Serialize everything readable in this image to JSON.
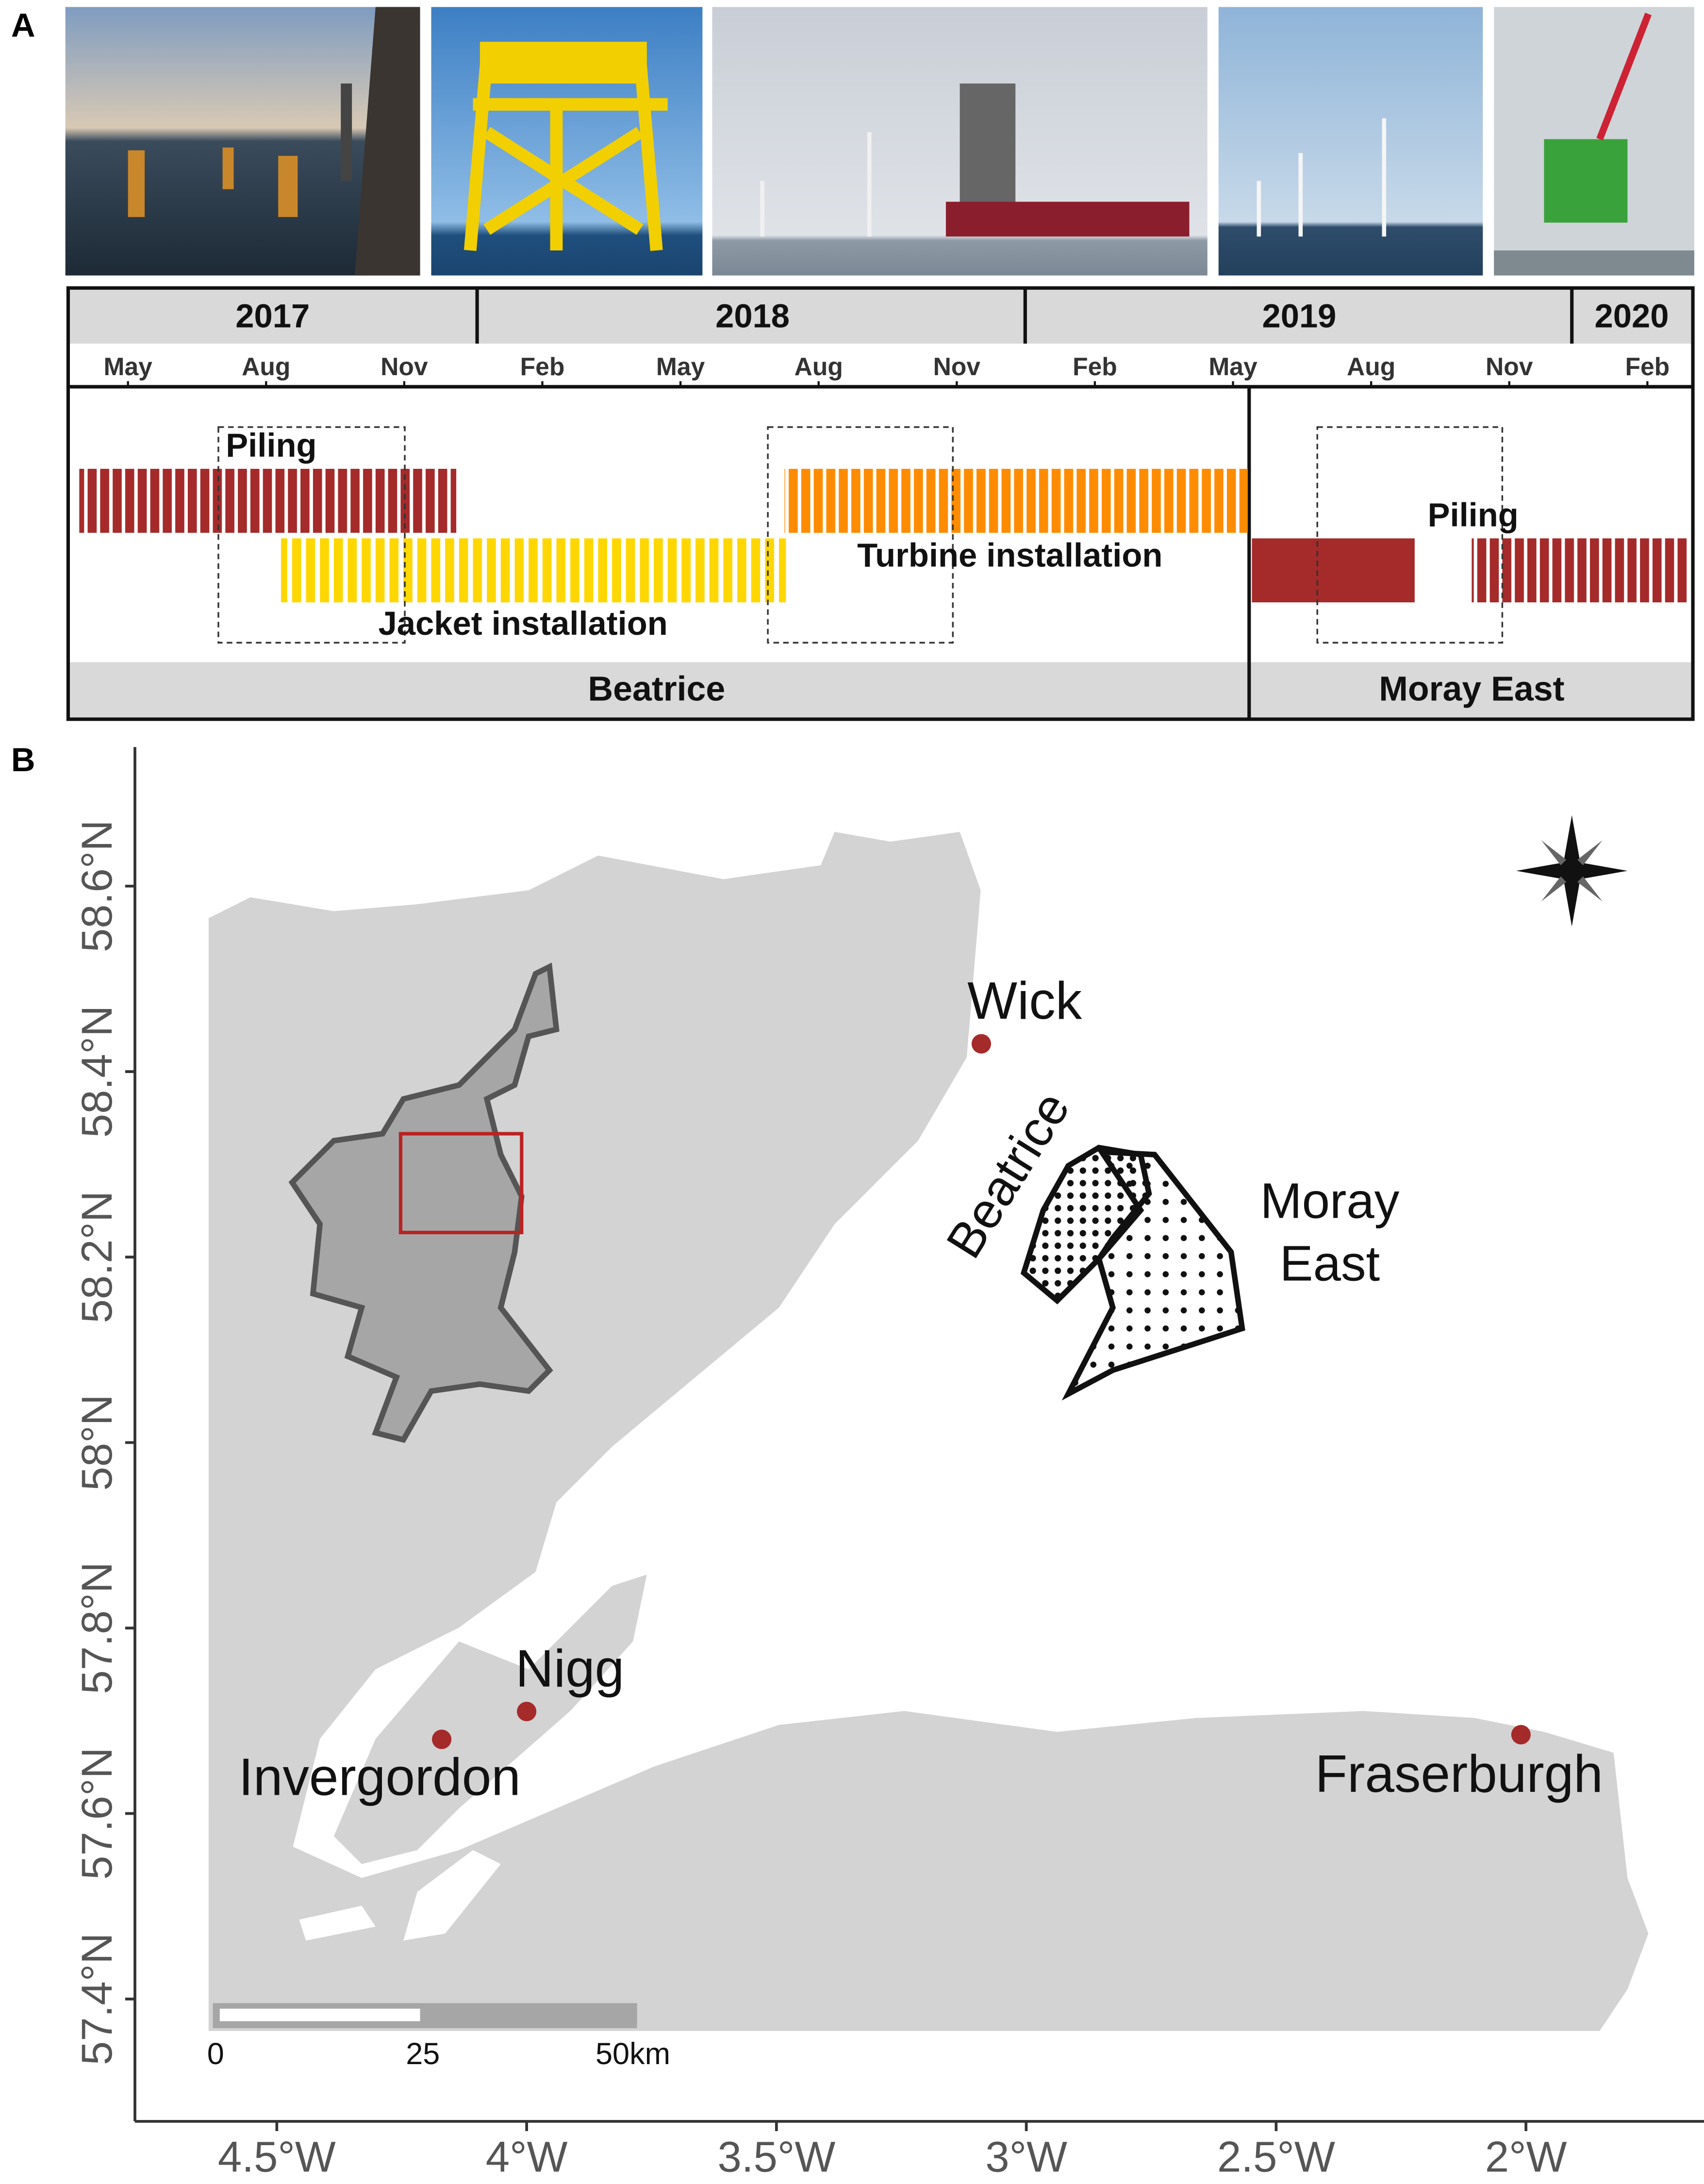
{
  "panel_a": {
    "label": "A",
    "years": [
      "2017",
      "2018",
      "2019",
      "2020"
    ],
    "months": [
      "May",
      "Aug",
      "Nov",
      "Feb",
      "May",
      "Aug",
      "Nov",
      "Feb",
      "May",
      "Aug",
      "Nov",
      "Feb"
    ],
    "activities": [
      "Piling",
      "Jacket installation",
      "Turbine installation",
      "Piling"
    ],
    "sites": [
      "Beatrice",
      "Moray East"
    ]
  },
  "panel_b": {
    "label": "B",
    "yticks": [
      {
        "value": 57.4,
        "label": "57.4°N"
      },
      {
        "value": 57.6,
        "label": "57.6°N"
      },
      {
        "value": 57.8,
        "label": "57.8°N"
      },
      {
        "value": 58,
        "label": "58°N"
      },
      {
        "value": 58.2,
        "label": "58.2°N"
      },
      {
        "value": 58.4,
        "label": "58.4°N"
      },
      {
        "value": 58.6,
        "label": "58.6°N"
      }
    ],
    "xticks": [
      {
        "value": -4.5,
        "label": "4.5°W"
      },
      {
        "value": -4,
        "label": "4°W"
      },
      {
        "value": -3.5,
        "label": "3.5°W"
      },
      {
        "value": -3,
        "label": "3°W"
      },
      {
        "value": -2.5,
        "label": "2.5°W"
      },
      {
        "value": -2,
        "label": "2°W"
      }
    ],
    "places": [
      {
        "name": "Wick",
        "lon": -3.09,
        "lat": 58.43
      },
      {
        "name": "Nigg",
        "lon": -4.0,
        "lat": 57.71
      },
      {
        "name": "Invergordon",
        "lon": -4.17,
        "lat": 57.68
      },
      {
        "name": "Fraserburgh",
        "lon": -2.01,
        "lat": 57.685
      }
    ],
    "farms": [
      "Beatrice",
      [
        "Moray",
        "East"
      ]
    ],
    "scale_labels": [
      "0",
      "25",
      "50km"
    ]
  }
}
